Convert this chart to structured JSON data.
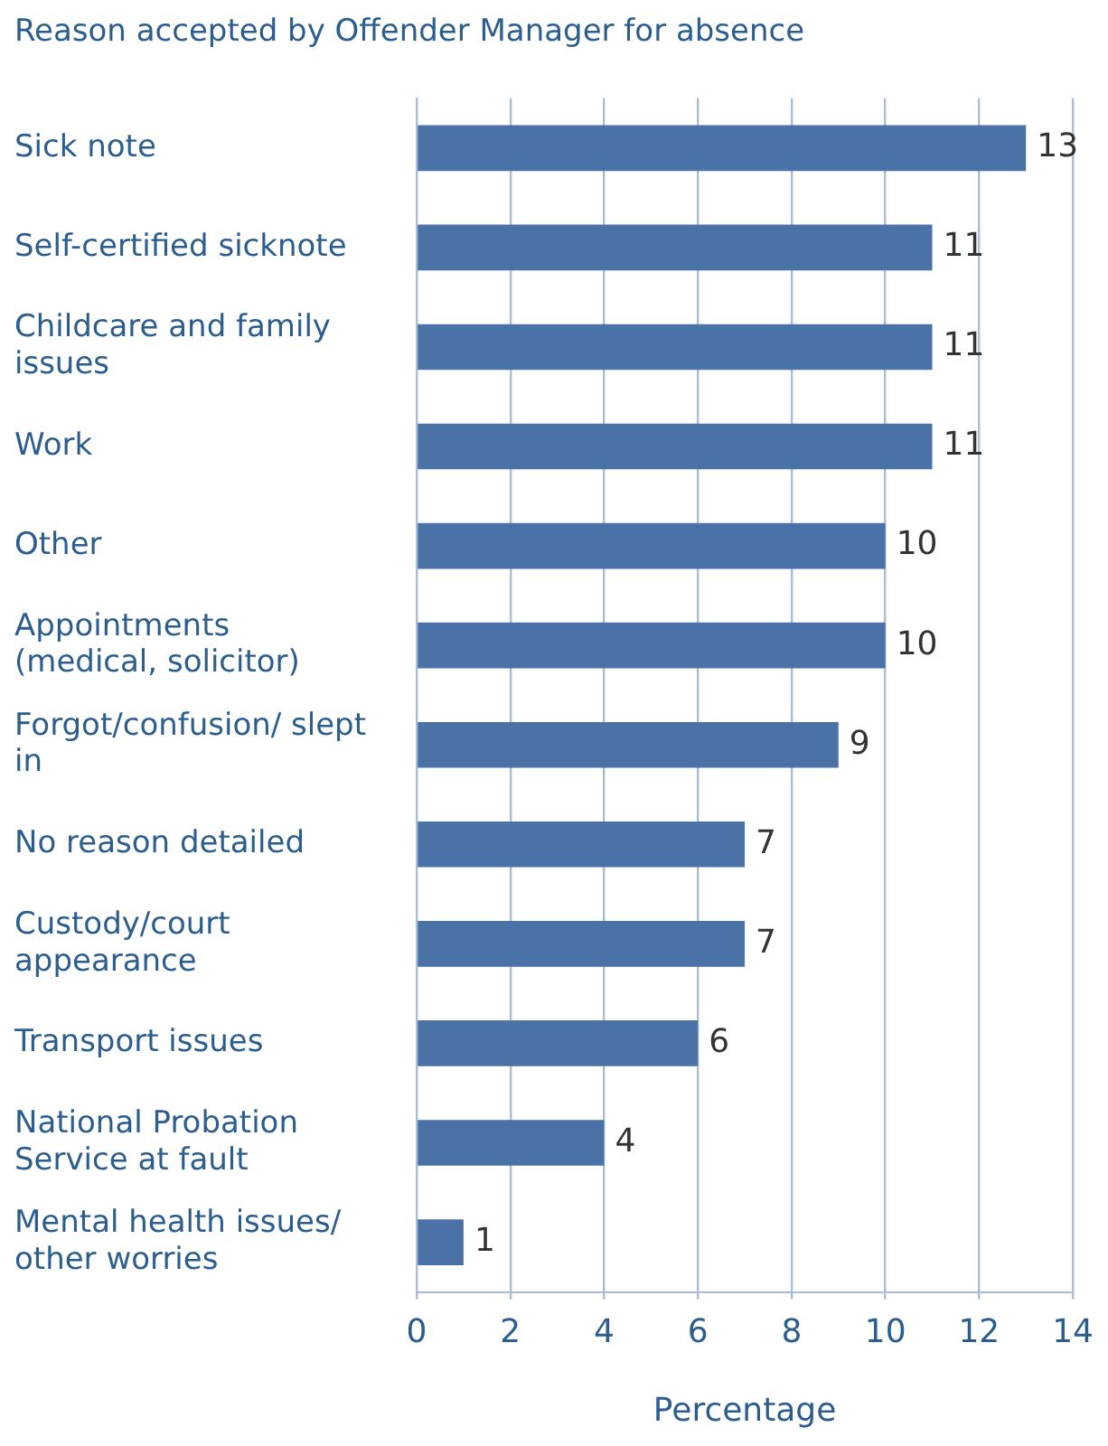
{
  "chart_data": {
    "type": "bar",
    "orientation": "horizontal",
    "title": "Reason accepted by Offender Manager for absence",
    "xlabel": "Percentage",
    "categories": [
      "Sick note",
      "Self-certified sicknote",
      "Childcare and family issues",
      "Work",
      "Other",
      "Appointments (medical, solicitor)",
      "Forgot/confusion/ slept in",
      "No reason detailed",
      "Custody/court appearance",
      "Transport issues",
      "National Probation Service at fault",
      "Mental health issues/ other worries"
    ],
    "values": [
      13,
      11,
      11,
      11,
      10,
      10,
      9,
      7,
      7,
      6,
      4,
      1
    ],
    "color": "#4a72a6",
    "xlim": [
      0,
      14
    ],
    "xticks": [
      0,
      2,
      4,
      6,
      8,
      10,
      12,
      14
    ],
    "grid": "x",
    "data_labels": true,
    "legend": false
  }
}
